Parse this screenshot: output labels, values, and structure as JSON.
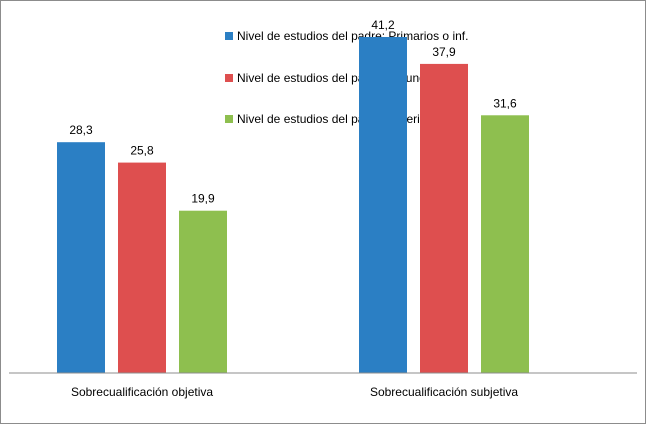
{
  "chart_data": {
    "type": "bar",
    "title": "",
    "xlabel": "",
    "ylabel": "",
    "categories": [
      "Sobrecualificación objetiva",
      "Sobrecualificación subjetiva"
    ],
    "series": [
      {
        "name": "Nivel de estudios del padre: Primarios o inf.",
        "values": [
          28.3,
          41.2
        ],
        "value_labels": [
          "28,3",
          "41,2"
        ],
        "color": "#2b7fc4"
      },
      {
        "name": "Nivel de estudios del padre Secundarios",
        "values": [
          25.8,
          37.9
        ],
        "value_labels": [
          "25,8",
          "37,9"
        ],
        "color": "#de4f4f"
      },
      {
        "name": "Nivel de estudios del padre Superiores",
        "values": [
          19.9,
          31.6
        ],
        "value_labels": [
          "19,9",
          "31,6"
        ],
        "color": "#8ebf4f"
      }
    ],
    "ylim": [
      0,
      45
    ],
    "grid": false,
    "legend_position": "top-center"
  }
}
